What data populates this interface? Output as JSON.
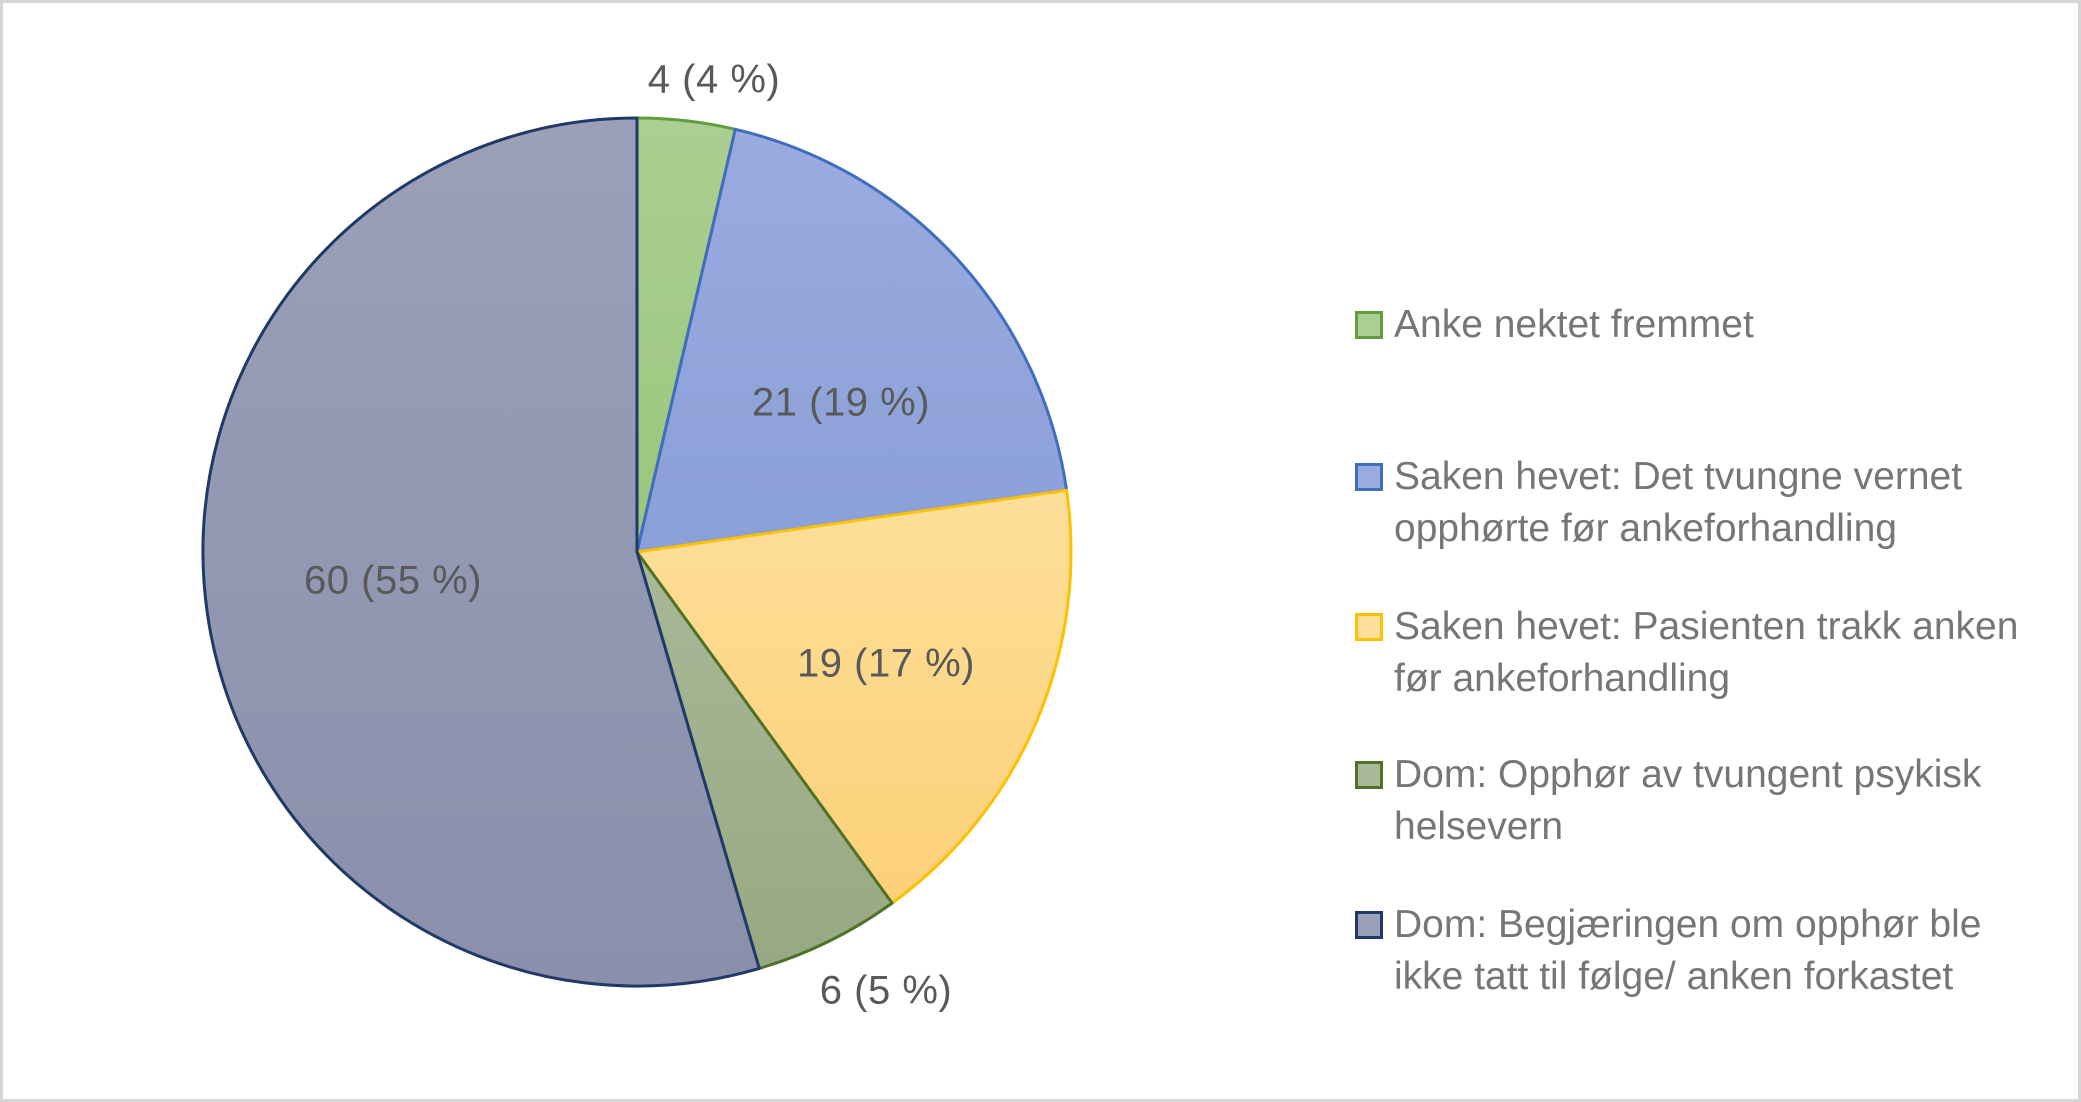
{
  "chart_data": {
    "type": "pie",
    "title": "",
    "total": 110,
    "start_angle_deg": 0,
    "direction": "clockwise",
    "legend_position": "right",
    "slices": [
      {
        "name": "Anke nektet fremmet",
        "value": 4,
        "pct": 4,
        "label": "4 (4 %)",
        "label_placement": "outside-top",
        "fill": "#abcf92",
        "fill2": "#9ac67c",
        "stroke": "#5f9d3e"
      },
      {
        "name": "Saken hevet: Det tvungne vernet opphørte før ankeforhandling",
        "value": 21,
        "pct": 19,
        "label": "21 (19 %)",
        "label_placement": "inside",
        "fill": "#9aabdf",
        "fill2": "#8ba0d8",
        "stroke": "#3f6dc0"
      },
      {
        "name": "Saken hevet: Pasienten trakk anken før ankeforhandling",
        "value": 19,
        "pct": 17,
        "label": "19 (17 %)",
        "label_placement": "inside",
        "fill": "#fddf99",
        "fill2": "#fcd078",
        "stroke": "#fdc101"
      },
      {
        "name": "Dom: Opphør av tvungent psykisk helsevern",
        "value": 6,
        "pct": 5,
        "label": "6 (5 %)",
        "label_placement": "outside-bottom",
        "fill": "#a9b897",
        "fill2": "#97a982",
        "stroke": "#4f7228"
      },
      {
        "name": "Dom: Begjæringen om opphør ble ikke tatt til følge/ anken forkastet",
        "value": 60,
        "pct": 55,
        "label": "60 (55 %)",
        "label_placement": "inside",
        "fill": "#9ba0b8",
        "fill2": "#8a90ac",
        "stroke": "#1f3a68"
      }
    ]
  },
  "legend": {
    "items": [
      {
        "lines": [
          "Anke nektet fremmet",
          ""
        ]
      },
      {
        "lines": [
          "Saken hevet: Det tvungne vernet",
          "opphørte før ankeforhandling"
        ]
      },
      {
        "lines": [
          "Saken hevet: Pasienten trakk anken",
          "før ankeforhandling"
        ]
      },
      {
        "lines": [
          "Dom: Opphør av tvungent psykisk",
          "helsevern"
        ]
      },
      {
        "lines": [
          "Dom: Begjæringen om opphør ble",
          "ikke tatt til følge/ anken forkastet"
        ]
      }
    ]
  },
  "colors": {
    "canvas_border": "#d6d6d6",
    "background": "#ffffff",
    "data_label_text": "#595959",
    "legend_text": "#767676"
  }
}
